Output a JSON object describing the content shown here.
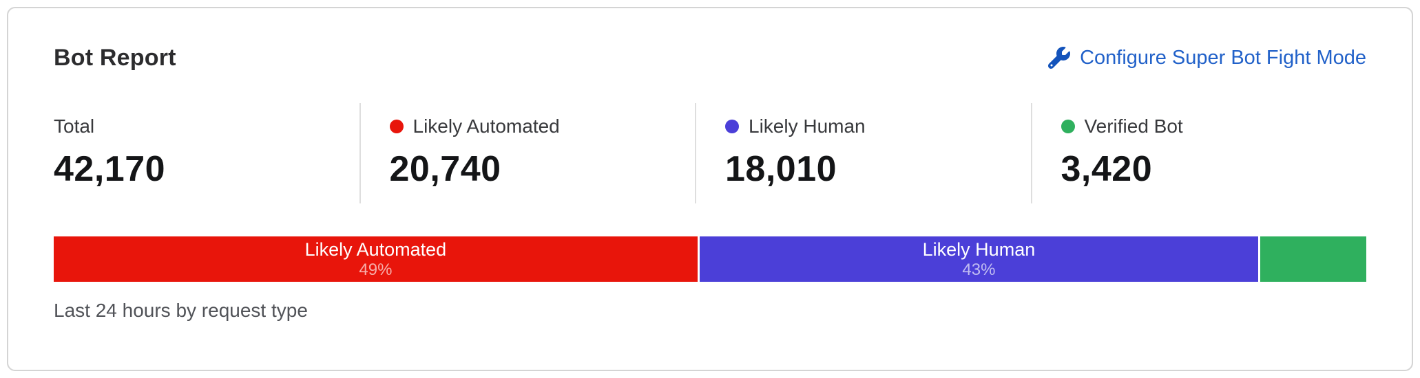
{
  "card": {
    "title": "Bot Report",
    "action": {
      "label": "Configure Super Bot Fight Mode",
      "icon": "wrench-icon",
      "link_color": "#2161c9",
      "icon_color": "#1353bb"
    },
    "stats": [
      {
        "key": "total",
        "label": "Total",
        "value": "42,170",
        "dot_color": null
      },
      {
        "key": "likely-automated",
        "label": "Likely Automated",
        "value": "20,740",
        "dot_color": "#e8150b"
      },
      {
        "key": "likely-human",
        "label": "Likely Human",
        "value": "18,010",
        "dot_color": "#4b3fd8"
      },
      {
        "key": "verified-bot",
        "label": "Verified Bot",
        "value": "3,420",
        "dot_color": "#2fb05e"
      }
    ],
    "bar": {
      "segments": [
        {
          "key": "likely-automated",
          "label": "Likely Automated",
          "percent_label": "49%",
          "width_percent": 49.2,
          "color": "#e8150b"
        },
        {
          "key": "likely-human",
          "label": "Likely Human",
          "percent_label": "43%",
          "width_percent": 42.7,
          "color": "#4b3fd8"
        },
        {
          "key": "verified-bot",
          "label": "",
          "percent_label": "",
          "width_percent": 8.1,
          "color": "#2fb05e"
        }
      ]
    },
    "footer": "Last 24 hours by request type"
  },
  "chart_data": {
    "type": "bar",
    "variant": "stacked-horizontal",
    "title": "Bot Report",
    "categories": [
      "Likely Automated",
      "Likely Human",
      "Verified Bot"
    ],
    "values": [
      20740,
      18010,
      3420
    ],
    "percentages": [
      49,
      43,
      8
    ],
    "total": 42170,
    "colors": [
      "#e8150b",
      "#4b3fd8",
      "#2fb05e"
    ],
    "caption": "Last 24 hours by request type"
  }
}
